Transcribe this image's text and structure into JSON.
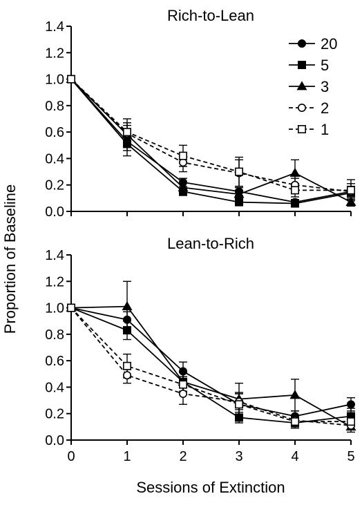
{
  "chart_data": [
    {
      "type": "line",
      "title": "Rich-to-Lean",
      "xlabel": "Sessions of Extinction",
      "ylabel": "Proportion of Baseline",
      "x": [
        0,
        1,
        2,
        3,
        4,
        5
      ],
      "xlim": [
        0,
        5
      ],
      "ylim": [
        0,
        1.4
      ],
      "xticks": [
        "0",
        "1",
        "2",
        "3",
        "4",
        "5"
      ],
      "yticks": [
        "0.0",
        "0.2",
        "0.4",
        "0.6",
        "0.8",
        "1.0",
        "1.2",
        "1.4"
      ],
      "legend_position": "top-right",
      "series": [
        {
          "name": "20",
          "marker": "circle-filled",
          "dash": "solid",
          "values": [
            1.0,
            0.53,
            0.22,
            0.15,
            0.07,
            0.15
          ],
          "errors": [
            0,
            0.07,
            0.03,
            0.03,
            0.02,
            0.04
          ]
        },
        {
          "name": "5",
          "marker": "square-filled",
          "dash": "solid",
          "values": [
            1.0,
            0.51,
            0.15,
            0.07,
            0.06,
            0.14
          ],
          "errors": [
            0,
            0.09,
            0.03,
            0.02,
            0.02,
            0.05
          ]
        },
        {
          "name": "3",
          "marker": "triangle-filled",
          "dash": "solid",
          "values": [
            1.0,
            0.58,
            0.18,
            0.13,
            0.29,
            0.07
          ],
          "errors": [
            0,
            0.07,
            0.04,
            0.03,
            0.1,
            0.03
          ]
        },
        {
          "name": "2",
          "marker": "circle-open",
          "dash": "dashed",
          "values": [
            1.0,
            0.59,
            0.37,
            0.29,
            0.2,
            0.15
          ],
          "errors": [
            0,
            0.08,
            0.07,
            0.1,
            0.05,
            0.06
          ]
        },
        {
          "name": "1",
          "marker": "square-open",
          "dash": "dashed",
          "values": [
            1.0,
            0.6,
            0.42,
            0.3,
            0.16,
            0.16
          ],
          "errors": [
            0,
            0.1,
            0.08,
            0.11,
            0.05,
            0.08
          ]
        }
      ]
    },
    {
      "type": "line",
      "title": "Lean-to-Rich",
      "xlabel": "Sessions of Extinction",
      "ylabel": "Proportion of Baseline",
      "x": [
        0,
        1,
        2,
        3,
        4,
        5
      ],
      "xlim": [
        0,
        5
      ],
      "ylim": [
        0,
        1.4
      ],
      "xticks": [
        "0",
        "1",
        "2",
        "3",
        "4",
        "5"
      ],
      "yticks": [
        "0.0",
        "0.2",
        "0.4",
        "0.6",
        "0.8",
        "1.0",
        "1.2",
        "1.4"
      ],
      "series": [
        {
          "name": "20",
          "marker": "circle-filled",
          "dash": "solid",
          "values": [
            1.0,
            0.91,
            0.52,
            0.27,
            0.18,
            0.27
          ],
          "errors": [
            0,
            0.06,
            0.07,
            0.09,
            0.04,
            0.05
          ]
        },
        {
          "name": "5",
          "marker": "square-filled",
          "dash": "solid",
          "values": [
            1.0,
            0.83,
            0.44,
            0.17,
            0.13,
            0.18
          ],
          "errors": [
            0,
            0.07,
            0.08,
            0.04,
            0.03,
            0.06
          ]
        },
        {
          "name": "3",
          "marker": "triangle-filled",
          "dash": "solid",
          "values": [
            1.0,
            1.01,
            0.44,
            0.31,
            0.34,
            0.1
          ],
          "errors": [
            0,
            0.19,
            0.07,
            0.12,
            0.12,
            0.04
          ]
        },
        {
          "name": "2",
          "marker": "circle-open",
          "dash": "dashed",
          "values": [
            1.0,
            0.49,
            0.35,
            0.29,
            0.15,
            0.11
          ],
          "errors": [
            0,
            0.06,
            0.08,
            0.06,
            0.04,
            0.03
          ]
        },
        {
          "name": "1",
          "marker": "square-open",
          "dash": "dashed",
          "values": [
            1.0,
            0.56,
            0.42,
            0.27,
            0.14,
            0.14
          ],
          "errors": [
            0,
            0.09,
            0.06,
            0.08,
            0.05,
            0.06
          ]
        }
      ]
    }
  ]
}
